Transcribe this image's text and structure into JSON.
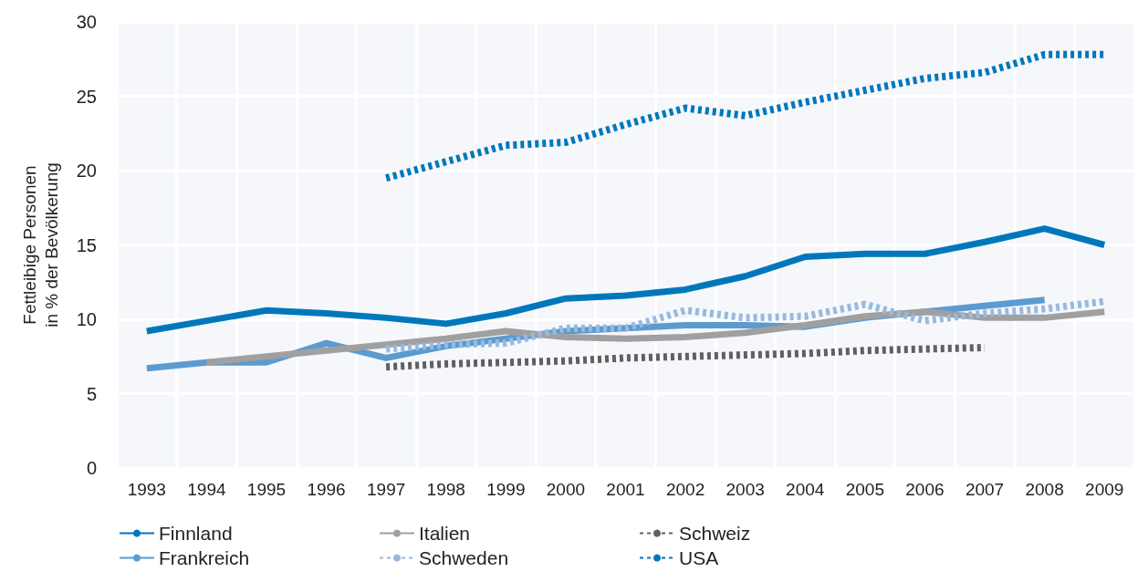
{
  "chart_data": {
    "type": "line",
    "ylabel": "Fettleibige Personen\nin % der Bevölkerung",
    "categories": [
      "1993",
      "1994",
      "1995",
      "1996",
      "1997",
      "1998",
      "1999",
      "2000",
      "2001",
      "2002",
      "2003",
      "2004",
      "2005",
      "2006",
      "2007",
      "2008",
      "2009"
    ],
    "series": [
      {
        "name": "Finnland",
        "color": "#0077bb",
        "line_style": "solid",
        "values": [
          9.2,
          9.9,
          10.6,
          10.4,
          10.1,
          9.7,
          10.4,
          11.4,
          11.6,
          12.0,
          12.9,
          14.2,
          14.4,
          14.4,
          15.2,
          16.1,
          15.0
        ]
      },
      {
        "name": "Frankreich",
        "color": "#5b9bd0",
        "line_style": "solid",
        "values": [
          6.7,
          7.1,
          7.1,
          8.4,
          7.4,
          8.2,
          8.7,
          9.2,
          9.4,
          9.6,
          9.6,
          9.5,
          10.1,
          10.5,
          10.9,
          11.3,
          null
        ]
      },
      {
        "name": "Italien",
        "color": "#a0a0a0",
        "line_style": "solid",
        "values": [
          null,
          7.1,
          7.5,
          7.9,
          8.3,
          8.7,
          9.2,
          8.8,
          8.7,
          8.8,
          9.1,
          9.6,
          10.2,
          10.5,
          10.1,
          10.1,
          10.5
        ]
      },
      {
        "name": "Schweden",
        "color": "#98b9e0",
        "line_style": "dotted",
        "values": [
          null,
          null,
          null,
          null,
          8.0,
          8.3,
          8.4,
          9.4,
          9.4,
          10.6,
          10.1,
          10.2,
          11.0,
          9.9,
          10.4,
          10.7,
          11.2
        ]
      },
      {
        "name": "Schweiz",
        "color": "#606060",
        "line_style": "dotted",
        "values": [
          null,
          null,
          null,
          null,
          6.8,
          7.0,
          7.1,
          7.2,
          7.4,
          7.5,
          7.6,
          7.7,
          7.9,
          8.0,
          8.1,
          null,
          null
        ]
      },
      {
        "name": "USA",
        "color": "#0077bb",
        "line_style": "dotted",
        "values": [
          null,
          null,
          null,
          null,
          19.5,
          20.6,
          21.7,
          21.9,
          23.1,
          24.2,
          23.7,
          24.6,
          25.4,
          26.2,
          26.6,
          27.8,
          27.8
        ]
      }
    ],
    "ylim": [
      0,
      30
    ],
    "yticks": [
      0,
      5,
      10,
      15,
      20,
      25,
      30
    ],
    "grid": true,
    "legend": "bottom",
    "marker": "none"
  }
}
